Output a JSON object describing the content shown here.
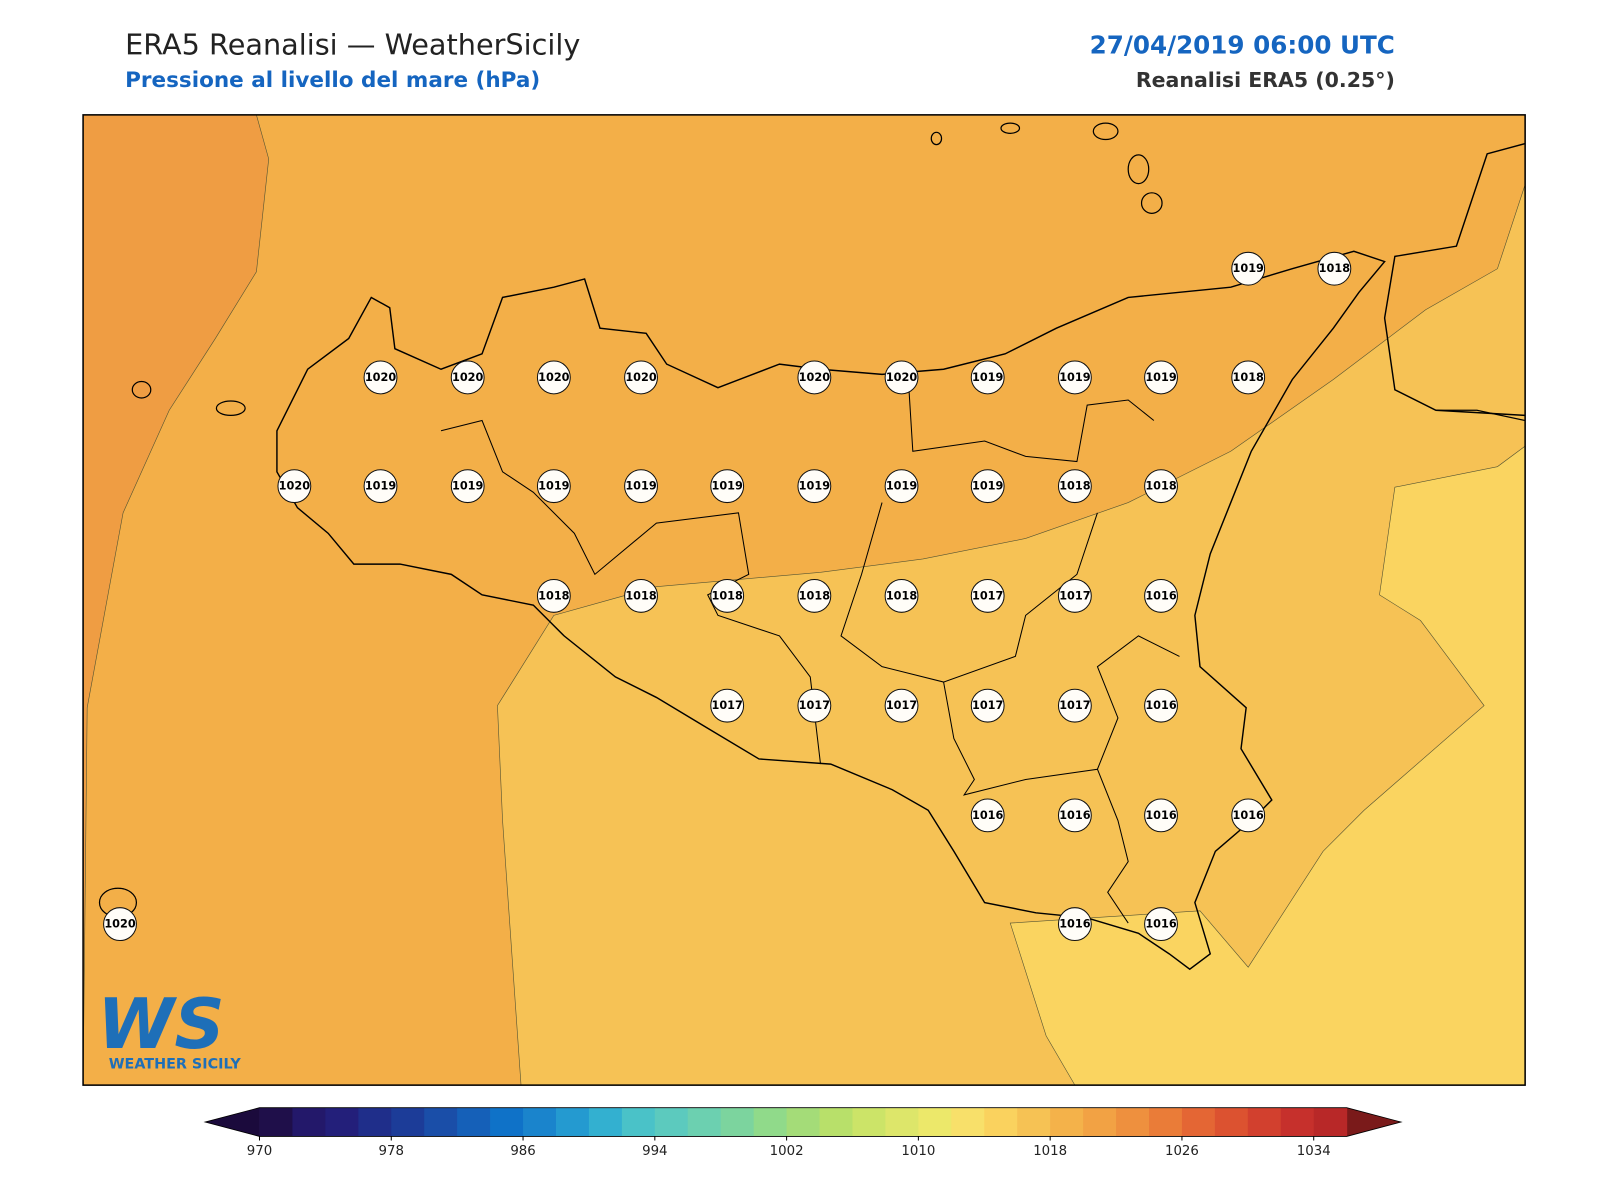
{
  "header": {
    "title": "ERA5 Reanalisi — WeatherSicily",
    "subtitle": "Pressione al livello del mare (hPa)",
    "datetime": "27/04/2019 06:00 UTC",
    "source": "Reanalisi ERA5 (0.25°)"
  },
  "stations": [
    1019,
    1018,
    1020,
    1020,
    1020,
    1020,
    1020,
    1020,
    1019,
    1019,
    1019,
    1018,
    1020,
    1019,
    1019,
    1019,
    1019,
    1019,
    1019,
    1019,
    1019,
    1018,
    1018,
    1018,
    1018,
    1018,
    1018,
    1018,
    1017,
    1017,
    1016,
    1017,
    1017,
    1017,
    1017,
    1017,
    1016,
    1016,
    1016,
    1016,
    1016,
    1020,
    1016,
    1016
  ],
  "logo": {
    "mark": "WS",
    "name": "WEATHER SICILY"
  },
  "colorbar": {
    "range": [
      970,
      1036
    ],
    "ticks": [
      970,
      978,
      986,
      994,
      1002,
      1010,
      1018,
      1026,
      1034
    ],
    "colors": [
      "#1f0f4a",
      "#23186a",
      "#231f7a",
      "#1f2e8a",
      "#1c3c98",
      "#1a4ea8",
      "#1560b8",
      "#0f72c8",
      "#1a84cc",
      "#249ad0",
      "#33b0d0",
      "#4ac2c8",
      "#5ccabe",
      "#6cd0b0",
      "#7cd49e",
      "#90da8a",
      "#a4dc78",
      "#b8e06a",
      "#cce468",
      "#dde66a",
      "#ece86a",
      "#f8e06a",
      "#fad25e",
      "#f6c254",
      "#f4b24a",
      "#f2a244",
      "#ee903e",
      "#ea7c38",
      "#e46634",
      "#dc5230",
      "#d2402e",
      "#c6302c",
      "#b82828"
    ],
    "under_color": "#1b0a3c",
    "over_color": "#7a1a1a"
  }
}
